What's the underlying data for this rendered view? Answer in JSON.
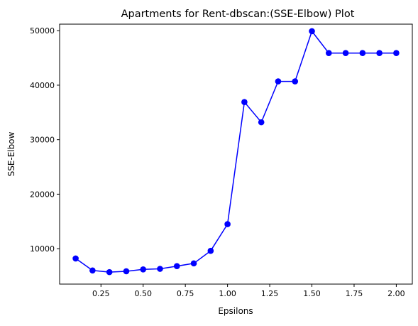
{
  "chart_data": {
    "type": "line",
    "title": "Apartments for Rent-dbscan:(SSE-Elbow) Plot",
    "xlabel": "Epsilons",
    "ylabel": "SSE-Elbow",
    "xlim": [
      0.005,
      2.095
    ],
    "ylim": [
      3500,
      51200
    ],
    "xticks": [
      0.25,
      0.5,
      0.75,
      1.0,
      1.25,
      1.5,
      1.75,
      2.0
    ],
    "xtick_labels": [
      "0.25",
      "0.50",
      "0.75",
      "1.00",
      "1.25",
      "1.50",
      "1.75",
      "2.00"
    ],
    "yticks": [
      10000,
      20000,
      30000,
      40000,
      50000
    ],
    "ytick_labels": [
      "10000",
      "20000",
      "30000",
      "40000",
      "50000"
    ],
    "grid": false,
    "series": [
      {
        "color": "#0000ff",
        "marker": "circle",
        "x": [
          0.1,
          0.2,
          0.3,
          0.4,
          0.5,
          0.6,
          0.7,
          0.8,
          0.9,
          1.0,
          1.1,
          1.2,
          1.3,
          1.4,
          1.5,
          1.6,
          1.7,
          1.8,
          1.9,
          2.0
        ],
        "values": [
          8200,
          6000,
          5700,
          5850,
          6200,
          6300,
          6800,
          7300,
          9600,
          14500,
          36900,
          33200,
          40700,
          40700,
          49900,
          45900,
          45900,
          45900,
          45900,
          45900
        ]
      }
    ]
  }
}
